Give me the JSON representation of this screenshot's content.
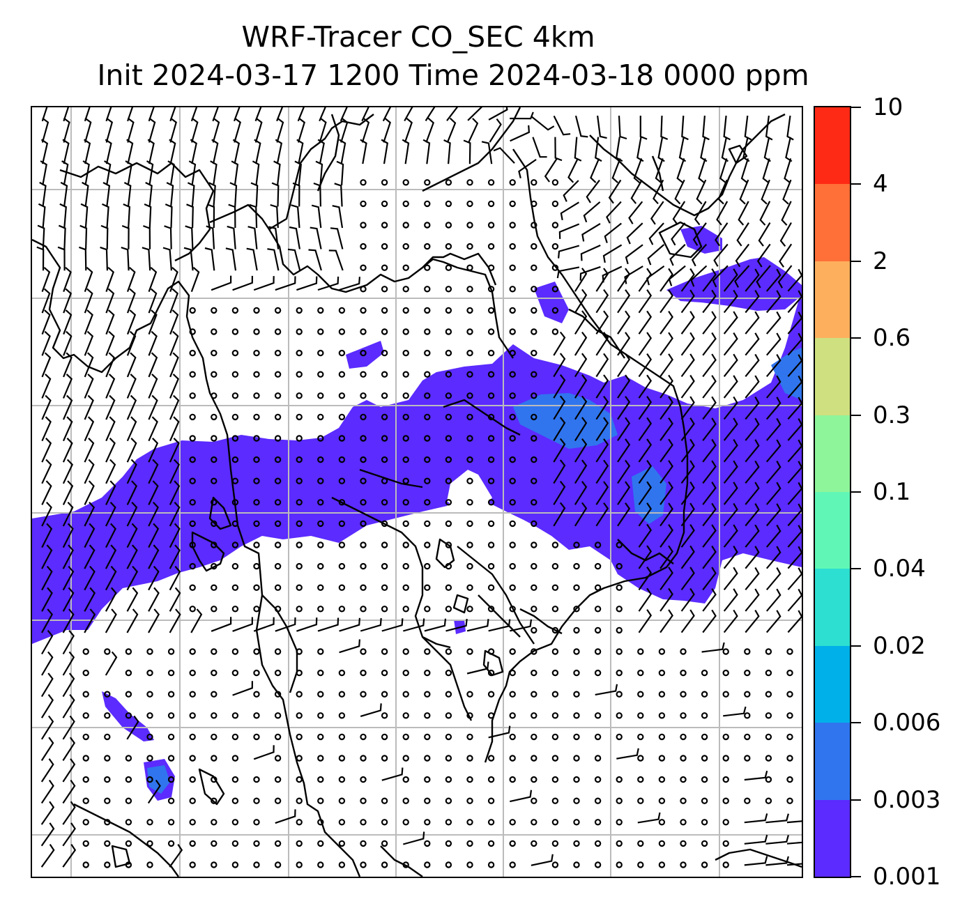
{
  "title_line1": "WRF-Tracer CO_SEC 4km",
  "title_line2": "Init 2024-03-17 1200 Time 2024-03-18 0000 ppm",
  "colorbar": {
    "levels": [
      "0.001",
      "0.003",
      "0.006",
      "0.02",
      "0.04",
      "0.1",
      "0.3",
      "0.6",
      "2",
      "4",
      "10"
    ],
    "colors": [
      "#5b2bff",
      "#3075ee",
      "#00b0e8",
      "#2ddfd0",
      "#60f7b6",
      "#8ef59a",
      "#cfe080",
      "#fdaf5e",
      "#ff7038",
      "#ff2a15"
    ]
  },
  "map": {
    "gridlines": "on",
    "grid_color": "#bbbbbb",
    "coastline_color": "#000000",
    "wind_barb_color": "#000000"
  }
}
